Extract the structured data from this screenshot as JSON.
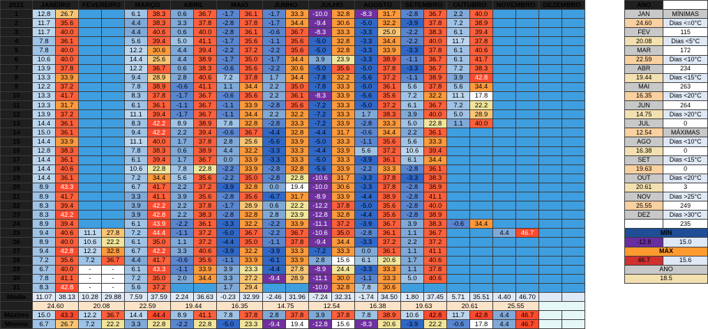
{
  "title": "2021",
  "months": [
    "JANEIRO",
    "FEVEREIRO",
    "MARÇO",
    "ABRIL",
    "MAIO",
    "JUNHO",
    "JULHO",
    "AGOSTO",
    "SETEMBRO",
    "OUTUBRO",
    "NOVEMBRO",
    "DEZEMBRO"
  ],
  "days": [
    "1",
    "2",
    "3",
    "4",
    "5",
    "6",
    "7",
    "8",
    "9",
    "10",
    "11",
    "12",
    "13",
    "14",
    "15",
    "16",
    "17",
    "18",
    "19",
    "20",
    "21",
    "22",
    "23",
    "24",
    "25",
    "26",
    "27",
    "28",
    "29",
    "30",
    "31"
  ],
  "cells": [
    [
      "12.8",
      "26.7",
      "",
      "",
      "6.1",
      "38.3",
      "0.6",
      "36.7",
      "-1.7",
      "36.1",
      "-1.7",
      "33.3",
      "-10.0",
      "32.8",
      "-8.3",
      "31.7",
      "-2.8",
      "36.7",
      "2.2",
      "40.0",
      "",
      "",
      "",
      ""
    ],
    [
      "11.7",
      "35.6",
      "",
      "",
      "4.4",
      "38.3",
      "3.3",
      "37.8",
      "-2.8",
      "37.8",
      "-1.7",
      "34.4",
      "-9.4",
      "30.6",
      "-5.0",
      "32.2",
      "-3.9",
      "37.8",
      "7.2",
      "38.9",
      "",
      "",
      "",
      ""
    ],
    [
      "11.7",
      "40.0",
      "",
      "",
      "4.4",
      "40.6",
      "0.6",
      "40.0",
      "-2.8",
      "36.1",
      "-0.6",
      "36.7",
      "-8.3",
      "33.3",
      "-3.3",
      "25.0",
      "-2.2",
      "38.3",
      "6.1",
      "39.4",
      "",
      "",
      "",
      ""
    ],
    [
      "7.8",
      "36.1",
      "",
      "",
      "5.6",
      "39.4",
      "5.0",
      "41.1",
      "-1.7",
      "35.6",
      "-1.1",
      "35.6",
      "-5.0",
      "32.8",
      "-3.3",
      "34.4",
      "-2.2",
      "40.0",
      "11.7",
      "37.8",
      "",
      "",
      "",
      ""
    ],
    [
      "7.8",
      "40.0",
      "",
      "",
      "12.2",
      "30.6",
      "4.4",
      "39.4",
      "-2.2",
      "37.2",
      "-2.2",
      "35.6",
      "-5.0",
      "32.8",
      "-3.3",
      "33.9",
      "-3.3",
      "37.8",
      "6.1",
      "40.6",
      "",
      "",
      "",
      ""
    ],
    [
      "10.6",
      "40.0",
      "",
      "",
      "14.4",
      "25.6",
      "4.4",
      "38.9",
      "-1.7",
      "35.0",
      "-1.7",
      "34.4",
      "3.9",
      "23.9",
      "-3.3",
      "38.9",
      "-1.1",
      "36.7",
      "6.1",
      "41.7",
      "",
      "",
      "",
      ""
    ],
    [
      "13.9",
      "37.8",
      "",
      "",
      "12.2",
      "36.7",
      "0.6",
      "38.3",
      "-0.6",
      "35.6",
      "-2.2",
      "30.6",
      "-5.0",
      "35.6",
      "-5.0",
      "37.8",
      "-3.3",
      "36.7",
      "7.2",
      "38.3",
      "",
      "",
      "",
      ""
    ],
    [
      "13.3",
      "33.9",
      "",
      "",
      "9.4",
      "28.9",
      "2.8",
      "40.6",
      "7.2",
      "37.8",
      "1.7",
      "34.4",
      "-7.8",
      "32.2",
      "-5.6",
      "37.2",
      "-1.1",
      "38.9",
      "3.9",
      "42.8",
      "",
      "",
      "",
      ""
    ],
    [
      "12.2",
      "37.2",
      "",
      "",
      "7.8",
      "38.9",
      "-0.6",
      "41.1",
      "1.1",
      "34.4",
      "2.2",
      "35.0",
      "-7.8",
      "33.3",
      "-5.0",
      "36.1",
      "5.6",
      "37.8",
      "5.6",
      "34.4",
      "",
      "",
      "",
      ""
    ],
    [
      "13.3",
      "41.7",
      "",
      "",
      "8.3",
      "37.8",
      "-1.7",
      "36.7",
      "-0.6",
      "35.6",
      "2.2",
      "36.1",
      "-8.3",
      "33.9",
      "-5.6",
      "35.6",
      "7.2",
      "32.2",
      "11.1",
      "17.8",
      "",
      "",
      "",
      ""
    ],
    [
      "13.3",
      "31.7",
      "",
      "",
      "6.1",
      "36.1",
      "-1.1",
      "36.7",
      "-1.1",
      "33.9",
      "-2.8",
      "35.6",
      "-7.2",
      "33.3",
      "-5.0",
      "37.2",
      "6.1",
      "36.7",
      "7.2",
      "22.2",
      "",
      "",
      "",
      ""
    ],
    [
      "13.9",
      "37.2",
      "",
      "",
      "11.1",
      "39.4",
      "-1.7",
      "36.7",
      "-1.1",
      "34.4",
      "2.2",
      "32.2",
      "-7.2",
      "33.3",
      "1.7",
      "38.3",
      "3.9",
      "40.0",
      "5.0",
      "28.9",
      "",
      "",
      "",
      ""
    ],
    [
      "14.4",
      "36.1",
      "",
      "",
      "8.3",
      "42.2",
      "8.9",
      "38.9",
      "7.8",
      "32.8",
      "-2.8",
      "33.3",
      "-7.2",
      "33.9",
      "-2.8",
      "33.3",
      "5.0",
      "22.8",
      "1.1",
      "40.0",
      "",
      "",
      "",
      ""
    ],
    [
      "15.0",
      "36.1",
      "",
      "",
      "9.4",
      "42.2",
      "2.2",
      "39.4",
      "-0.6",
      "36.7",
      "-4.4",
      "32.8",
      "-4.4",
      "31.7",
      "-0.6",
      "34.4",
      "2.2",
      "36.1",
      "",
      "",
      "",
      "",
      "",
      ""
    ],
    [
      "14.4",
      "33.9",
      "",
      "",
      "11.1",
      "40.0",
      "1.7",
      "37.8",
      "2.8",
      "25.6",
      "-5.6",
      "33.9",
      "-5.0",
      "33.3",
      "-1.1",
      "35.6",
      "5.6",
      "33.3",
      "",
      "",
      "",
      "",
      "",
      ""
    ],
    [
      "12.8",
      "38.3",
      "",
      "",
      "7.8",
      "38.3",
      "0.6",
      "38.9",
      "4.4",
      "32.2",
      "-3.3",
      "33.3",
      "-4.4",
      "33.9",
      "5.6",
      "37.2",
      "10.6",
      "39.4",
      "",
      "",
      "",
      "",
      "",
      ""
    ],
    [
      "14.4",
      "36.1",
      "",
      "",
      "6.1",
      "39.4",
      "1.7",
      "36.7",
      "0.0",
      "33.9",
      "-3.3",
      "33.3",
      "-5.0",
      "33.3",
      "-3.9",
      "36.1",
      "6.1",
      "34.4",
      "",
      "",
      "",
      "",
      "",
      ""
    ],
    [
      "14.4",
      "40.6",
      "",
      "",
      "10.6",
      "22.8",
      "7.8",
      "22.8",
      "-2.2",
      "33.9",
      "-2.8",
      "32.8",
      "-5.6",
      "33.9",
      "-2.2",
      "33.3",
      "-2.8",
      "36.1",
      "",
      "",
      "",
      "",
      "",
      ""
    ],
    [
      "14.4",
      "36.1",
      "",
      "",
      "7.2",
      "34.4",
      "5.6",
      "35.6",
      "-2.2",
      "35.0",
      "-2.8",
      "22.8",
      "-10.6",
      "31.7",
      "-3.3",
      "37.8",
      "-3.3",
      "38.3",
      "",
      "",
      "",
      "",
      "",
      ""
    ],
    [
      "8.9",
      "43.3",
      "",
      "",
      "6.7",
      "41.7",
      "2.2",
      "37.2",
      "-3.9",
      "32.8",
      "0.0",
      "19.4",
      "-10.0",
      "30.6",
      "-3.3",
      "37.8",
      "-2.8",
      "38.9",
      "",
      "",
      "",
      "",
      "",
      ""
    ],
    [
      "8.9",
      "41.7",
      "",
      "",
      "3.3",
      "41.1",
      "3.9",
      "35.6",
      "-2.8",
      "35.6",
      "-6.7",
      "31.7",
      "-8.9",
      "33.9",
      "-4.4",
      "38.9",
      "-2.8",
      "41.1",
      "",
      "",
      "",
      "",
      "",
      ""
    ],
    [
      "8.3",
      "39.4",
      "",
      "",
      "3.9",
      "42.2",
      "2.2",
      "37.8",
      "-1.7",
      "28.9",
      "0.6",
      "22.2",
      "-12.2",
      "37.8",
      "-5.0",
      "35.6",
      "-2.8",
      "40.0",
      "",
      "",
      "",
      "",
      "",
      ""
    ],
    [
      "8.3",
      "42.2",
      "",
      "",
      "3.9",
      "42.8",
      "2.2",
      "38.3",
      "-2.8",
      "32.8",
      "2.8",
      "23.9",
      "-12.8",
      "32.8",
      "-4.4",
      "35.6",
      "-2.8",
      "38.9",
      "",
      "",
      "",
      "",
      "",
      ""
    ],
    [
      "8.9",
      "39.4",
      "",
      "",
      "6.1",
      "43.9",
      "-2.2",
      "36.1",
      "-3.3",
      "32.2",
      "-2.2",
      "33.9",
      "-11.1",
      "37.2",
      "-3.9",
      "36.7",
      "3.9",
      "38.3",
      "-0.6",
      "34.4",
      "",
      "",
      "",
      ""
    ],
    [
      "9.4",
      "40.6",
      "11.1",
      "27.8",
      "7.2",
      "44.4",
      "-1.1",
      "37.2",
      "-5.0",
      "36.7",
      "-2.2",
      "36.7",
      "-10.6",
      "35.0",
      "-2.8",
      "36.1",
      "1.1",
      "36.7",
      "",
      "",
      "4.4",
      "46.7",
      "",
      ""
    ],
    [
      "8.9",
      "40.0",
      "10.6",
      "22.2",
      "6.1",
      "35.0",
      "1.1",
      "37.2",
      "-4.4",
      "35.0",
      "-1.1",
      "37.8",
      "-9.4",
      "34.4",
      "-3.3",
      "37.2",
      "2.2",
      "37.2",
      "",
      "",
      "",
      "",
      "",
      ""
    ],
    [
      "9.4",
      "42.8",
      "12.2",
      "32.8",
      "6.7",
      "42.2",
      "3.3",
      "40.6",
      "-3.9",
      "32.2",
      "-3.9",
      "33.3",
      "-7.2",
      "33.3",
      "0.0",
      "36.1",
      "1.1",
      "41.1",
      "",
      "",
      "",
      "",
      "",
      ""
    ],
    [
      "7.2",
      "35.6",
      "7.2",
      "36.7",
      "4.4",
      "41.7",
      "-0.6",
      "35.6",
      "-1.1",
      "33.9",
      "-6.1",
      "33.9",
      "2.8",
      "15.6",
      "6.1",
      "20.6",
      "1.7",
      "40.6",
      "",
      "",
      "",
      "",
      "",
      ""
    ],
    [
      "6.7",
      "40.0",
      "-",
      "-",
      "6.1",
      "43.3",
      "-1.1",
      "33.9",
      "3.9",
      "23.3",
      "-4.4",
      "27.8",
      "-8.9",
      "24.4",
      "-3.3",
      "33.3",
      "1.1",
      "37.8",
      "",
      "",
      "",
      "",
      "",
      ""
    ],
    [
      "7.8",
      "41.1",
      "-",
      "-",
      "7.2",
      "35.0",
      "2.0",
      "34.4",
      "3.3",
      "27.2",
      "-9.4",
      "28.9",
      "-11.1",
      "30.0",
      "-1.1",
      "33.3",
      "5.0",
      "40.6",
      "",
      "",
      "",
      "",
      "",
      ""
    ],
    [
      "8.3",
      "42.8",
      "-",
      "-",
      "5.6",
      "37.2",
      "",
      "",
      "1.7",
      "29.4",
      "",
      "",
      "-10.0",
      "32.8",
      "7.8",
      "30.6",
      "",
      "",
      "",
      "",
      "",
      "",
      "",
      ""
    ]
  ],
  "summary": {
    "media_label": "Média",
    "maximo_label": "Máximo",
    "minimo_label": "Mínimo",
    "media": [
      "11.07",
      "38.13",
      "10.28",
      "29.88",
      "7.59",
      "37.59",
      "2.24",
      "36.63",
      "-0.23",
      "32.99",
      "-2.46",
      "31.96",
      "-7.24",
      "32.31",
      "-1.74",
      "34.50",
      "1.80",
      "37.45",
      "5.71",
      "35.51",
      "4.40",
      "46.70",
      "",
      ""
    ],
    "media_avg": [
      "24.60",
      "20.08",
      "22.59",
      "19.44",
      "16.35",
      "14.75",
      "12.54",
      "16.38",
      "19.63",
      "20.61",
      "25.55",
      ""
    ],
    "maximo": [
      "15.0",
      "43.3",
      "12.2",
      "36.7",
      "14.4",
      "44.4",
      "8.9",
      "41.1",
      "7.8",
      "37.8",
      "2.8",
      "37.8",
      "3.9",
      "37.8",
      "7.8",
      "38.9",
      "10.6",
      "42.8",
      "11.7",
      "42.8",
      "4.4",
      "46.7",
      "",
      ""
    ],
    "minimo": [
      "6.7",
      "26.7",
      "7.2",
      "22.2",
      "3.3",
      "22.8",
      "-2.2",
      "22.8",
      "-5.0",
      "23.3",
      "-9.4",
      "19.4",
      "-12.8",
      "15.6",
      "-8.3",
      "20.6",
      "-3.9",
      "22.2",
      "-0.6",
      "17.8",
      "4.4",
      "46.7",
      "",
      ""
    ]
  },
  "side": {
    "ano_label": "ANO",
    "minimas_label": "MÍNIMAS",
    "maximas_label": "MÁXIMAS",
    "min_label": "MÍN",
    "max_label": "MÁX",
    "ano_footer_label": "ANO",
    "month_avgs": [
      {
        "m": "JAN",
        "v": "24.60"
      },
      {
        "m": "FEV",
        "v": "20.08"
      },
      {
        "m": "MAR",
        "v": "22.59"
      },
      {
        "m": "ABR",
        "v": "19.44"
      },
      {
        "m": "MAI",
        "v": "16.35"
      },
      {
        "m": "JUN",
        "v": "14.75"
      },
      {
        "m": "JUL",
        "v": "12.54"
      },
      {
        "m": "AGO",
        "v": "16.38"
      },
      {
        "m": "SET",
        "v": "19.63"
      },
      {
        "m": "OUT",
        "v": "20.61"
      },
      {
        "m": "NOV",
        "v": "25.55"
      },
      {
        "m": "DEZ",
        "v": ""
      }
    ],
    "minimas": [
      {
        "label": "Dias <=0°C",
        "v": "115"
      },
      {
        "label": "Dias <5°C",
        "v": "172"
      },
      {
        "label": "Dias <10°C",
        "v": "234"
      },
      {
        "label": "Dias <15°C",
        "v": "263"
      },
      {
        "label": "Dias <20°C",
        "v": "264"
      },
      {
        "label": "Dias >20°C",
        "v": "0"
      }
    ],
    "maximas": [
      {
        "label": "Dias <10°C",
        "v": "0"
      },
      {
        "label": "Dias <15°C",
        "v": "0"
      },
      {
        "label": "Dias <20°C",
        "v": "3"
      },
      {
        "label": "Dias >25°C",
        "v": "249"
      },
      {
        "label": "Dias >30°C",
        "v": "235"
      }
    ],
    "min_row": [
      "-12.8",
      "15.0"
    ],
    "max_row": [
      "46.7",
      "15.6"
    ],
    "ano_value": "18.5"
  }
}
